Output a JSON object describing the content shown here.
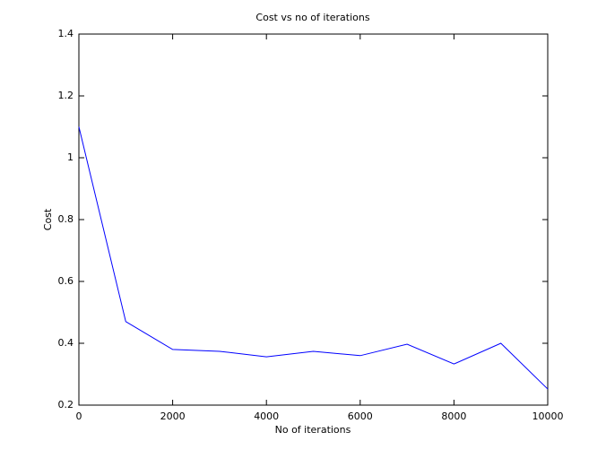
{
  "chart_data": {
    "type": "line",
    "title": "Cost vs no of iterations",
    "xlabel": "No of iterations",
    "ylabel": "Cost",
    "x": [
      0,
      1000,
      2000,
      3000,
      4000,
      5000,
      6000,
      7000,
      8000,
      9000,
      10000
    ],
    "series": [
      {
        "name": "Cost",
        "color": "#0000ff",
        "values": [
          1.1,
          0.47,
          0.38,
          0.374,
          0.356,
          0.374,
          0.36,
          0.397,
          0.333,
          0.4,
          0.252
        ]
      }
    ],
    "xlim": [
      0,
      10000
    ],
    "xticks": [
      0,
      2000,
      4000,
      6000,
      8000,
      10000
    ],
    "ylim": [
      0.2,
      1.4
    ],
    "yticks": [
      0.2,
      0.4,
      0.6,
      0.8,
      1,
      1.2,
      1.4
    ],
    "grid": false
  }
}
